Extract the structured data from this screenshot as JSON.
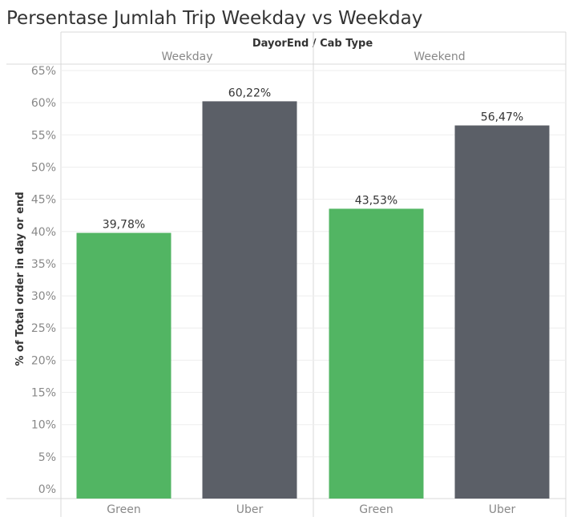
{
  "chart_data": {
    "type": "bar",
    "title": "Persentase Jumlah Trip Weekday vs Weekday",
    "header_title": "DayorEnd  /  Cab Type",
    "ylabel": "% of Total order in day or end",
    "ylim": [
      0,
      65
    ],
    "yticks": [
      0,
      5,
      10,
      15,
      20,
      25,
      30,
      35,
      40,
      45,
      50,
      55,
      60,
      65
    ],
    "ytick_labels": [
      "0%",
      "5%",
      "10%",
      "15%",
      "20%",
      "25%",
      "30%",
      "35%",
      "40%",
      "45%",
      "50%",
      "55%",
      "60%",
      "65%"
    ],
    "grid": true,
    "colors": {
      "Green": "#52b563",
      "Uber": "#5b5f67"
    },
    "panes": [
      {
        "label": "Weekday",
        "categories": [
          "Green",
          "Uber"
        ],
        "values": [
          39.78,
          60.22
        ],
        "data_labels": [
          "39,78%",
          "60,22%"
        ]
      },
      {
        "label": "Weekend",
        "categories": [
          "Green",
          "Uber"
        ],
        "values": [
          43.53,
          56.47
        ],
        "data_labels": [
          "43,53%",
          "56,47%"
        ]
      }
    ]
  }
}
